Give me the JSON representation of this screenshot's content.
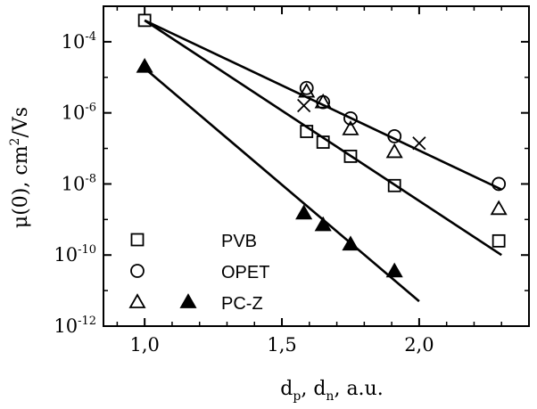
{
  "chart_data": {
    "type": "scatter",
    "title": "",
    "xlabel": {
      "main": "d",
      "sub1": "p",
      "sep": ", d",
      "sub2": "n",
      "tail": ", a.u."
    },
    "ylabel": {
      "lead": "μ(0), cm",
      "sup": "2",
      "tail": "/Vs"
    },
    "x_scale": "linear",
    "y_scale": "log",
    "xlim": [
      0.85,
      2.4
    ],
    "ylim": [
      1e-12,
      0.001
    ],
    "x_ticks": [
      {
        "value": 1.0,
        "label": "1,0"
      },
      {
        "value": 1.5,
        "label": "1,5"
      },
      {
        "value": 2.0,
        "label": "2,0"
      }
    ],
    "y_ticks": [
      {
        "value": 0.0001,
        "base": "10",
        "exp": "-4"
      },
      {
        "value": 1e-06,
        "base": "10",
        "exp": "-6"
      },
      {
        "value": 1e-08,
        "base": "10",
        "exp": "-8"
      },
      {
        "value": 1e-10,
        "base": "10",
        "exp": "-10"
      },
      {
        "value": 1e-12,
        "base": "10",
        "exp": "-12"
      }
    ],
    "grid": false,
    "legend_position": "bottom-left",
    "series": [
      {
        "name": "PVB",
        "marker": "square",
        "x": [
          1.0,
          1.59,
          1.65,
          1.75,
          1.91,
          2.29
        ],
        "y": [
          0.0004,
          3e-07,
          1.5e-07,
          6e-08,
          9e-09,
          2.5e-10
        ]
      },
      {
        "name": "OPET",
        "marker": "circle",
        "x": [
          1.59,
          1.65,
          1.75,
          1.91,
          2.29
        ],
        "y": [
          5e-06,
          2e-06,
          7e-07,
          2.2e-07,
          1e-08
        ]
      },
      {
        "name": "PC-Z",
        "marker": "triangle",
        "x": [
          1.59,
          1.65,
          1.75,
          1.91,
          2.29
        ],
        "y": [
          4e-06,
          2e-06,
          3.5e-07,
          8e-08,
          2e-09
        ]
      },
      {
        "name": "PC-Z",
        "marker": "triangle-filled",
        "x": [
          1.0,
          1.58,
          1.65,
          1.75,
          1.91
        ],
        "y": [
          2e-05,
          1.5e-09,
          7e-10,
          2e-10,
          3.5e-11
        ]
      },
      {
        "name": "",
        "marker": "cross",
        "x": [
          1.58,
          2.0
        ],
        "y": [
          1.6e-06,
          1.4e-07
        ]
      }
    ],
    "fit_lines": [
      {
        "x": [
          1.0,
          2.3
        ],
        "y": [
          0.0004,
          7e-09
        ]
      },
      {
        "x": [
          1.0,
          2.3
        ],
        "y": [
          0.0004,
          1e-10
        ]
      },
      {
        "x": [
          1.0,
          2.0
        ],
        "y": [
          1.8e-05,
          5e-12
        ]
      }
    ],
    "legend": [
      {
        "label": "PVB",
        "markers": [
          "square"
        ]
      },
      {
        "label": "OPET",
        "markers": [
          "circle"
        ]
      },
      {
        "label": "PC-Z",
        "markers": [
          "triangle",
          "triangle-filled"
        ]
      }
    ]
  }
}
